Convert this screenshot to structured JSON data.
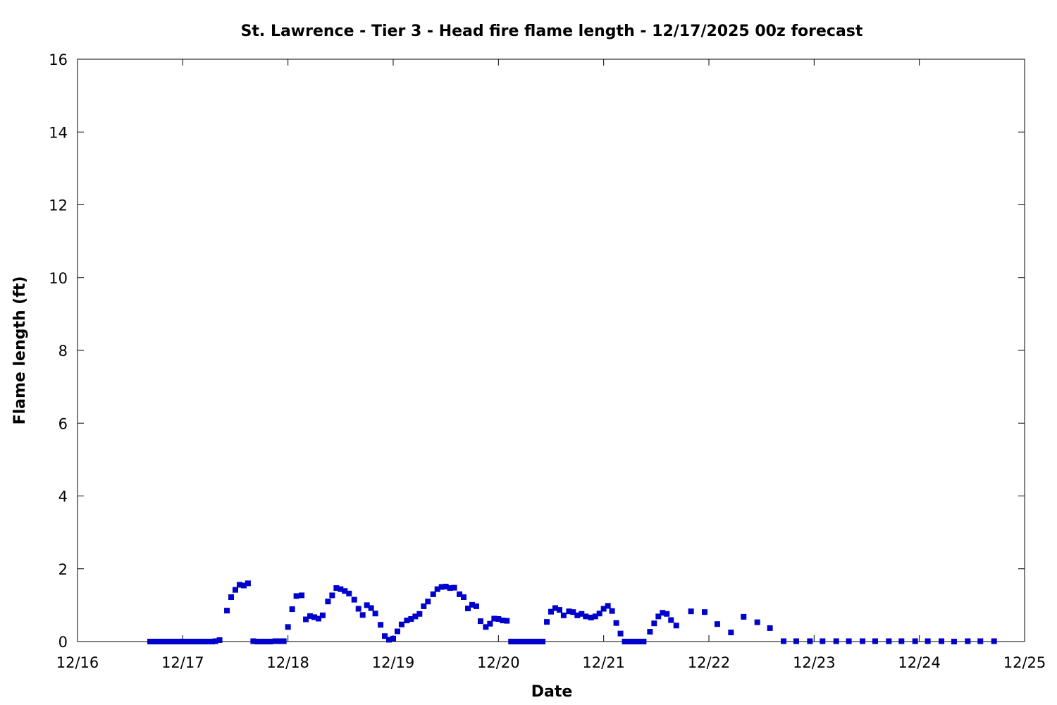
{
  "chart_data": {
    "type": "scatter",
    "title": "St. Lawrence - Tier 3 - Head fire flame length - 12/17/2025 00z forecast",
    "xlabel": "Date",
    "ylabel": "Flame length (ft)",
    "xlim": [
      0,
      9
    ],
    "ylim": [
      0,
      16
    ],
    "x_ticks": [
      {
        "value": 0,
        "label": "12/16"
      },
      {
        "value": 1,
        "label": "12/17"
      },
      {
        "value": 2,
        "label": "12/18"
      },
      {
        "value": 3,
        "label": "12/19"
      },
      {
        "value": 4,
        "label": "12/20"
      },
      {
        "value": 5,
        "label": "12/21"
      },
      {
        "value": 6,
        "label": "12/22"
      },
      {
        "value": 7,
        "label": "12/23"
      },
      {
        "value": 8,
        "label": "12/24"
      },
      {
        "value": 9,
        "label": "12/25"
      }
    ],
    "y_ticks": [
      {
        "value": 0,
        "label": "0"
      },
      {
        "value": 2,
        "label": "2"
      },
      {
        "value": 4,
        "label": "4"
      },
      {
        "value": 6,
        "label": "6"
      },
      {
        "value": 8,
        "label": "8"
      },
      {
        "value": 10,
        "label": "10"
      },
      {
        "value": 12,
        "label": "12"
      },
      {
        "value": 14,
        "label": "14"
      },
      {
        "value": 16,
        "label": "16"
      }
    ],
    "grid": false,
    "marker": "square",
    "series": [
      {
        "color": "#0000cc",
        "points": [
          {
            "x": 0.69,
            "y": 0.0
          },
          {
            "x": 0.72,
            "y": 0.0
          },
          {
            "x": 0.75,
            "y": 0.0
          },
          {
            "x": 0.78,
            "y": 0.0
          },
          {
            "x": 0.81,
            "y": 0.0
          },
          {
            "x": 0.85,
            "y": 0.0
          },
          {
            "x": 0.88,
            "y": 0.0
          },
          {
            "x": 0.91,
            "y": 0.0
          },
          {
            "x": 0.94,
            "y": 0.0
          },
          {
            "x": 0.97,
            "y": 0.0
          },
          {
            "x": 1.0,
            "y": 0.0
          },
          {
            "x": 1.03,
            "y": 0.0
          },
          {
            "x": 1.06,
            "y": 0.0
          },
          {
            "x": 1.09,
            "y": 0.0
          },
          {
            "x": 1.12,
            "y": 0.0
          },
          {
            "x": 1.15,
            "y": 0.0
          },
          {
            "x": 1.19,
            "y": 0.0
          },
          {
            "x": 1.22,
            "y": 0.0
          },
          {
            "x": 1.25,
            "y": 0.0
          },
          {
            "x": 1.28,
            "y": 0.0
          },
          {
            "x": 1.31,
            "y": 0.01
          },
          {
            "x": 1.35,
            "y": 0.04
          },
          {
            "x": 1.42,
            "y": 0.85
          },
          {
            "x": 1.46,
            "y": 1.22
          },
          {
            "x": 1.5,
            "y": 1.42
          },
          {
            "x": 1.54,
            "y": 1.56
          },
          {
            "x": 1.58,
            "y": 1.54
          },
          {
            "x": 1.62,
            "y": 1.6
          },
          {
            "x": 1.67,
            "y": 0.01
          },
          {
            "x": 1.71,
            "y": 0.0
          },
          {
            "x": 1.75,
            "y": 0.0
          },
          {
            "x": 1.79,
            "y": 0.0
          },
          {
            "x": 1.83,
            "y": 0.0
          },
          {
            "x": 1.88,
            "y": 0.01
          },
          {
            "x": 1.92,
            "y": 0.01
          },
          {
            "x": 1.96,
            "y": 0.01
          },
          {
            "x": 2.0,
            "y": 0.4
          },
          {
            "x": 2.04,
            "y": 0.89
          },
          {
            "x": 2.08,
            "y": 1.25
          },
          {
            "x": 2.13,
            "y": 1.27
          },
          {
            "x": 2.17,
            "y": 0.61
          },
          {
            "x": 2.21,
            "y": 0.7
          },
          {
            "x": 2.25,
            "y": 0.67
          },
          {
            "x": 2.29,
            "y": 0.63
          },
          {
            "x": 2.33,
            "y": 0.72
          },
          {
            "x": 2.38,
            "y": 1.1
          },
          {
            "x": 2.42,
            "y": 1.27
          },
          {
            "x": 2.46,
            "y": 1.47
          },
          {
            "x": 2.5,
            "y": 1.44
          },
          {
            "x": 2.54,
            "y": 1.39
          },
          {
            "x": 2.58,
            "y": 1.32
          },
          {
            "x": 2.63,
            "y": 1.15
          },
          {
            "x": 2.67,
            "y": 0.9
          },
          {
            "x": 2.71,
            "y": 0.73
          },
          {
            "x": 2.75,
            "y": 1.0
          },
          {
            "x": 2.79,
            "y": 0.92
          },
          {
            "x": 2.83,
            "y": 0.77
          },
          {
            "x": 2.88,
            "y": 0.46
          },
          {
            "x": 2.92,
            "y": 0.15
          },
          {
            "x": 2.96,
            "y": 0.05
          },
          {
            "x": 3.0,
            "y": 0.08
          },
          {
            "x": 3.04,
            "y": 0.28
          },
          {
            "x": 3.08,
            "y": 0.47
          },
          {
            "x": 3.13,
            "y": 0.58
          },
          {
            "x": 3.17,
            "y": 0.62
          },
          {
            "x": 3.21,
            "y": 0.69
          },
          {
            "x": 3.25,
            "y": 0.76
          },
          {
            "x": 3.29,
            "y": 0.97
          },
          {
            "x": 3.33,
            "y": 1.1
          },
          {
            "x": 3.38,
            "y": 1.3
          },
          {
            "x": 3.42,
            "y": 1.44
          },
          {
            "x": 3.46,
            "y": 1.5
          },
          {
            "x": 3.5,
            "y": 1.51
          },
          {
            "x": 3.54,
            "y": 1.47
          },
          {
            "x": 3.58,
            "y": 1.48
          },
          {
            "x": 3.63,
            "y": 1.3
          },
          {
            "x": 3.67,
            "y": 1.22
          },
          {
            "x": 3.71,
            "y": 0.91
          },
          {
            "x": 3.75,
            "y": 1.01
          },
          {
            "x": 3.79,
            "y": 0.97
          },
          {
            "x": 3.83,
            "y": 0.56
          },
          {
            "x": 3.88,
            "y": 0.4
          },
          {
            "x": 3.92,
            "y": 0.49
          },
          {
            "x": 3.96,
            "y": 0.63
          },
          {
            "x": 4.0,
            "y": 0.62
          },
          {
            "x": 4.04,
            "y": 0.58
          },
          {
            "x": 4.08,
            "y": 0.57
          },
          {
            "x": 4.12,
            "y": 0.0
          },
          {
            "x": 4.15,
            "y": 0.0
          },
          {
            "x": 4.18,
            "y": 0.0
          },
          {
            "x": 4.21,
            "y": 0.0
          },
          {
            "x": 4.24,
            "y": 0.0
          },
          {
            "x": 4.27,
            "y": 0.0
          },
          {
            "x": 4.3,
            "y": 0.0
          },
          {
            "x": 4.33,
            "y": 0.0
          },
          {
            "x": 4.36,
            "y": 0.0
          },
          {
            "x": 4.39,
            "y": 0.0
          },
          {
            "x": 4.42,
            "y": 0.0
          },
          {
            "x": 4.46,
            "y": 0.54
          },
          {
            "x": 4.5,
            "y": 0.82
          },
          {
            "x": 4.54,
            "y": 0.92
          },
          {
            "x": 4.58,
            "y": 0.87
          },
          {
            "x": 4.62,
            "y": 0.72
          },
          {
            "x": 4.67,
            "y": 0.83
          },
          {
            "x": 4.71,
            "y": 0.81
          },
          {
            "x": 4.75,
            "y": 0.72
          },
          {
            "x": 4.79,
            "y": 0.76
          },
          {
            "x": 4.83,
            "y": 0.69
          },
          {
            "x": 4.88,
            "y": 0.66
          },
          {
            "x": 4.92,
            "y": 0.69
          },
          {
            "x": 4.96,
            "y": 0.77
          },
          {
            "x": 5.0,
            "y": 0.9
          },
          {
            "x": 5.04,
            "y": 0.98
          },
          {
            "x": 5.08,
            "y": 0.84
          },
          {
            "x": 5.12,
            "y": 0.51
          },
          {
            "x": 5.16,
            "y": 0.22
          },
          {
            "x": 5.2,
            "y": 0.0
          },
          {
            "x": 5.23,
            "y": 0.0
          },
          {
            "x": 5.26,
            "y": 0.0
          },
          {
            "x": 5.29,
            "y": 0.0
          },
          {
            "x": 5.32,
            "y": 0.0
          },
          {
            "x": 5.35,
            "y": 0.0
          },
          {
            "x": 5.38,
            "y": 0.0
          },
          {
            "x": 5.44,
            "y": 0.27
          },
          {
            "x": 5.48,
            "y": 0.5
          },
          {
            "x": 5.52,
            "y": 0.69
          },
          {
            "x": 5.56,
            "y": 0.79
          },
          {
            "x": 5.6,
            "y": 0.76
          },
          {
            "x": 5.64,
            "y": 0.59
          },
          {
            "x": 5.69,
            "y": 0.44
          },
          {
            "x": 5.83,
            "y": 0.83
          },
          {
            "x": 5.96,
            "y": 0.81
          },
          {
            "x": 6.08,
            "y": 0.48
          },
          {
            "x": 6.21,
            "y": 0.25
          },
          {
            "x": 6.33,
            "y": 0.68
          },
          {
            "x": 6.46,
            "y": 0.53
          },
          {
            "x": 6.58,
            "y": 0.37
          },
          {
            "x": 6.71,
            "y": 0.01
          },
          {
            "x": 6.83,
            "y": 0.01
          },
          {
            "x": 6.96,
            "y": 0.01
          },
          {
            "x": 7.08,
            "y": 0.01
          },
          {
            "x": 7.21,
            "y": 0.01
          },
          {
            "x": 7.33,
            "y": 0.01
          },
          {
            "x": 7.46,
            "y": 0.01
          },
          {
            "x": 7.58,
            "y": 0.01
          },
          {
            "x": 7.71,
            "y": 0.01
          },
          {
            "x": 7.83,
            "y": 0.01
          },
          {
            "x": 7.96,
            "y": 0.01
          },
          {
            "x": 8.08,
            "y": 0.01
          },
          {
            "x": 8.21,
            "y": 0.01
          },
          {
            "x": 8.33,
            "y": 0.0
          },
          {
            "x": 8.46,
            "y": 0.01
          },
          {
            "x": 8.58,
            "y": 0.01
          },
          {
            "x": 8.71,
            "y": 0.01
          }
        ]
      }
    ]
  }
}
